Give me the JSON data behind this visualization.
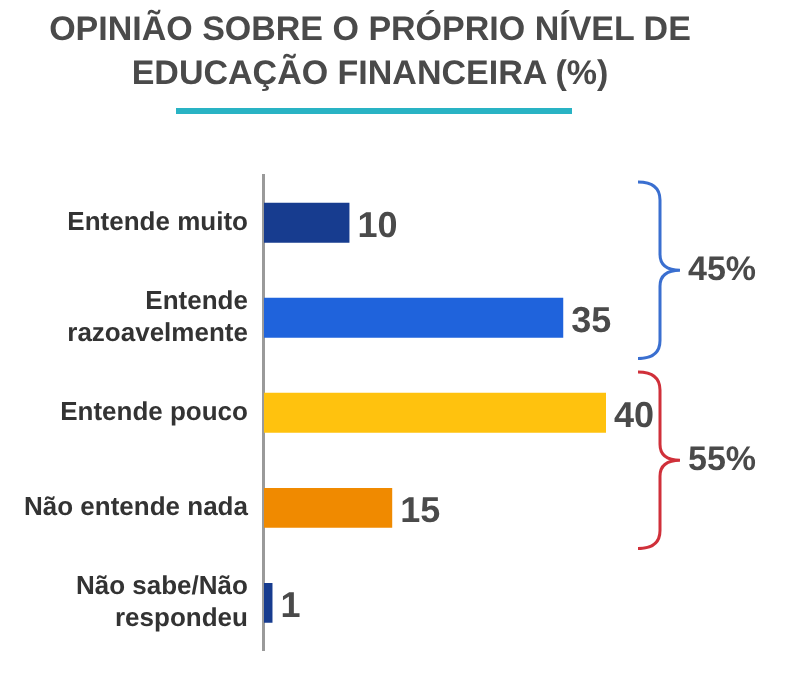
{
  "chart_data": {
    "type": "bar",
    "orientation": "horizontal",
    "title": "OPINIÃO SOBRE O PRÓPRIO NÍVEL DE EDUCAÇÃO FINANCEIRA (%)",
    "categories": [
      "Entende muito",
      "Entende razoavelmente",
      "Entende pouco",
      "Não entende nada",
      "Não sabe/Não respondeu"
    ],
    "values": [
      10,
      35,
      40,
      15,
      1
    ],
    "colors": [
      "#173c8f",
      "#1f63dc",
      "#ffc20e",
      "#f08a00",
      "#173c8f"
    ],
    "data_labels": true,
    "grid": false,
    "legend": false,
    "annotations": [
      "45%",
      "55%"
    ]
  }
}
